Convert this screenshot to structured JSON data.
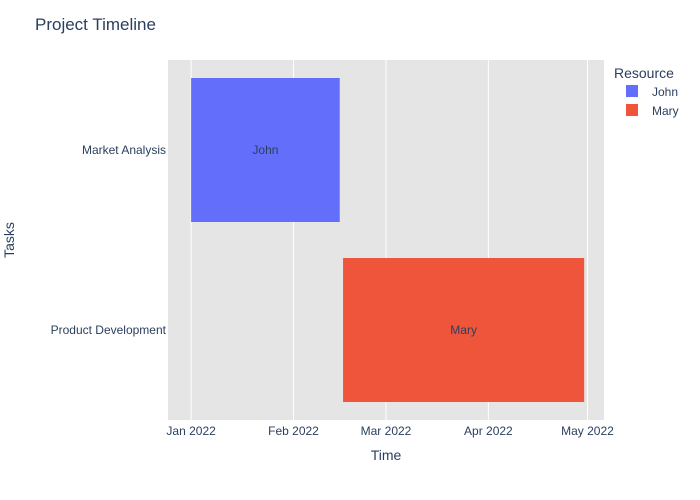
{
  "chart_data": {
    "type": "bar",
    "orientation": "horizontal",
    "title": "Project Timeline",
    "xlabel": "Time",
    "ylabel": "Tasks",
    "xlim": [
      "2021-12-25",
      "2022-05-06"
    ],
    "x_ticks": [
      {
        "date": "2022-01-01",
        "label": "Jan 2022"
      },
      {
        "date": "2022-02-01",
        "label": "Feb 2022"
      },
      {
        "date": "2022-03-01",
        "label": "Mar 2022"
      },
      {
        "date": "2022-04-01",
        "label": "Apr 2022"
      },
      {
        "date": "2022-05-01",
        "label": "May 2022"
      }
    ],
    "categories": [
      "Market Analysis",
      "Product Development"
    ],
    "tasks": [
      {
        "task": "Market Analysis",
        "start": "2022-01-01",
        "end": "2022-02-15",
        "resource": "John",
        "label": "John",
        "color": "#636efa"
      },
      {
        "task": "Product Development",
        "start": "2022-02-16",
        "end": "2022-04-30",
        "resource": "Mary",
        "label": "Mary",
        "color": "#ef553b"
      }
    ],
    "legend": {
      "title": "Resource",
      "placement": "top-right",
      "items": [
        {
          "name": "John",
          "color": "#636efa"
        },
        {
          "name": "Mary",
          "color": "#ef553b"
        }
      ]
    },
    "grid": true,
    "plot_background": "#e5e5e5",
    "grid_color": "#ffffff"
  }
}
